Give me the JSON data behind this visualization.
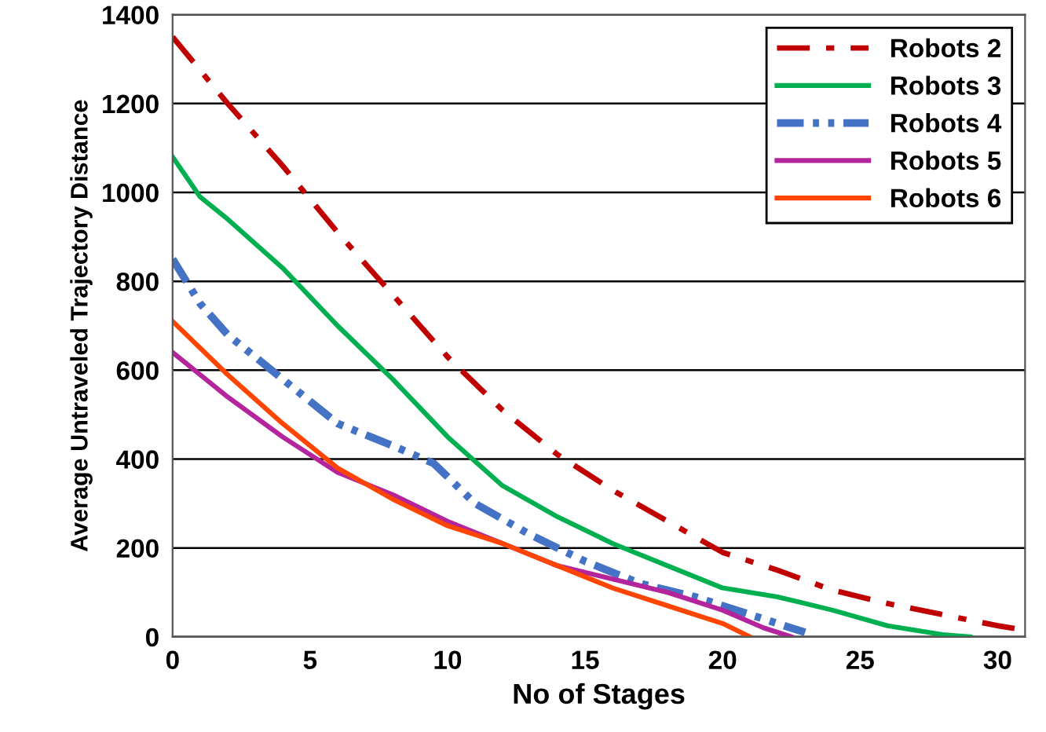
{
  "chart_data": {
    "type": "line",
    "xlabel": "No of Stages",
    "ylabel": "Average Untraveled Trajectory Distance",
    "xlim": [
      0,
      31
    ],
    "ylim": [
      0,
      1400
    ],
    "xticks": [
      0,
      5,
      10,
      15,
      20,
      25,
      30
    ],
    "yticks": [
      0,
      200,
      400,
      600,
      800,
      1000,
      1200,
      1400
    ],
    "grid": "y",
    "legend": "top right",
    "marker": "none",
    "series": [
      {
        "name": "Robots 2",
        "color": "#c00000",
        "line_style": "dashdot",
        "x": [
          0,
          2,
          4,
          6,
          8,
          10,
          12,
          14,
          16,
          18,
          20,
          22,
          24,
          26,
          28,
          30,
          31
        ],
        "values": [
          1350,
          1200,
          1060,
          910,
          770,
          630,
          510,
          410,
          330,
          260,
          190,
          150,
          105,
          75,
          50,
          25,
          15
        ]
      },
      {
        "name": "Robots 3",
        "color": "#00b050",
        "line_style": "solid",
        "x": [
          0,
          1,
          2,
          4,
          6,
          8,
          10,
          12,
          14,
          16,
          18,
          20,
          22,
          24,
          26,
          28,
          29
        ],
        "values": [
          1080,
          990,
          940,
          830,
          700,
          580,
          450,
          340,
          270,
          210,
          160,
          110,
          90,
          60,
          25,
          5,
          0
        ]
      },
      {
        "name": "Robots 4",
        "color": "#4472c4",
        "line_style": "dashdotdot",
        "x": [
          0,
          1,
          2,
          4,
          6,
          8,
          9.5,
          11,
          13,
          15,
          17,
          19,
          21,
          23
        ],
        "values": [
          850,
          750,
          680,
          580,
          480,
          430,
          390,
          300,
          230,
          170,
          120,
          90,
          50,
          10
        ]
      },
      {
        "name": "Robots 5",
        "color": "#b4249c",
        "line_style": "solid",
        "x": [
          0,
          2,
          4,
          6,
          8,
          10,
          12,
          14,
          16,
          18,
          20,
          21.5,
          22.5
        ],
        "values": [
          640,
          540,
          450,
          370,
          320,
          260,
          210,
          160,
          130,
          100,
          60,
          20,
          0
        ]
      },
      {
        "name": "Robots 6",
        "color": "#ff4500",
        "line_style": "solid",
        "x": [
          0,
          2,
          4,
          6,
          8,
          10,
          12,
          14,
          16,
          18,
          20,
          21
        ],
        "values": [
          710,
          590,
          480,
          380,
          310,
          250,
          210,
          160,
          110,
          70,
          30,
          0
        ]
      }
    ]
  }
}
